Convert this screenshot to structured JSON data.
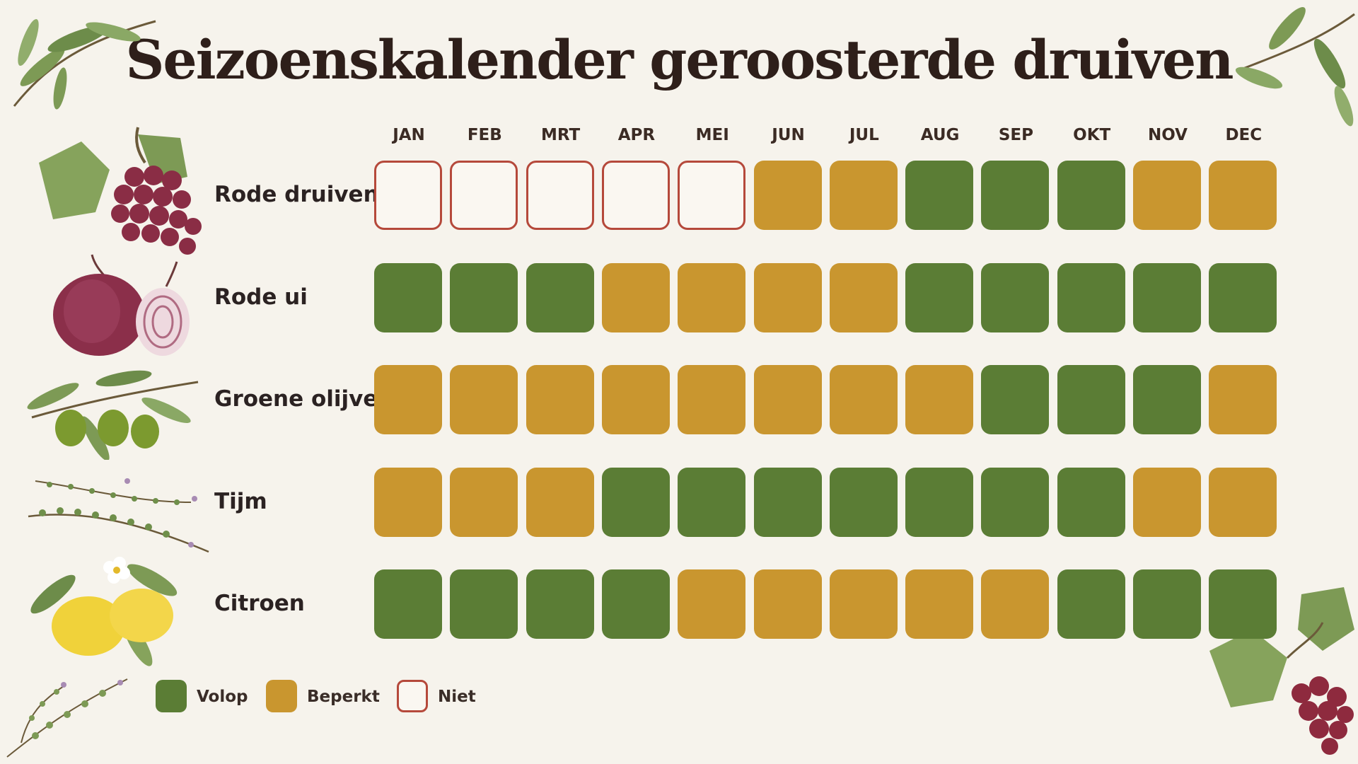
{
  "title": "Seizoenskalender geroosterde druiven",
  "colors": {
    "volop": "#5b7d35",
    "beperkt": "#c9962f",
    "niet_border": "#b5493b",
    "niet_fill": "#faf7f1"
  },
  "chart_data": {
    "type": "heatmap",
    "title": "Seizoenskalender geroosterde druiven",
    "x": [
      "JAN",
      "FEB",
      "MRT",
      "APR",
      "MEI",
      "JUN",
      "JUL",
      "AUG",
      "SEP",
      "OKT",
      "NOV",
      "DEC"
    ],
    "legend": [
      {
        "key": "V",
        "label": "Volop"
      },
      {
        "key": "B",
        "label": "Beperkt"
      },
      {
        "key": "N",
        "label": "Niet"
      }
    ],
    "legend_position": "bottom-left",
    "rows": [
      {
        "label": "Rode druiven",
        "icon": "red-grapes-icon",
        "values": [
          "N",
          "N",
          "N",
          "N",
          "N",
          "B",
          "B",
          "V",
          "V",
          "V",
          "B",
          "B"
        ]
      },
      {
        "label": "Rode ui",
        "icon": "red-onion-icon",
        "values": [
          "V",
          "V",
          "V",
          "B",
          "B",
          "B",
          "B",
          "V",
          "V",
          "V",
          "V",
          "V"
        ]
      },
      {
        "label": "Groene olijven",
        "icon": "green-olives-icon",
        "values": [
          "B",
          "B",
          "B",
          "B",
          "B",
          "B",
          "B",
          "B",
          "V",
          "V",
          "V",
          "B"
        ]
      },
      {
        "label": "Tijm",
        "icon": "thyme-icon",
        "values": [
          "B",
          "B",
          "B",
          "V",
          "V",
          "V",
          "V",
          "V",
          "V",
          "V",
          "B",
          "B"
        ]
      },
      {
        "label": "Citroen",
        "icon": "lemon-icon",
        "values": [
          "V",
          "V",
          "V",
          "V",
          "B",
          "B",
          "B",
          "B",
          "B",
          "V",
          "V",
          "V"
        ]
      }
    ]
  }
}
